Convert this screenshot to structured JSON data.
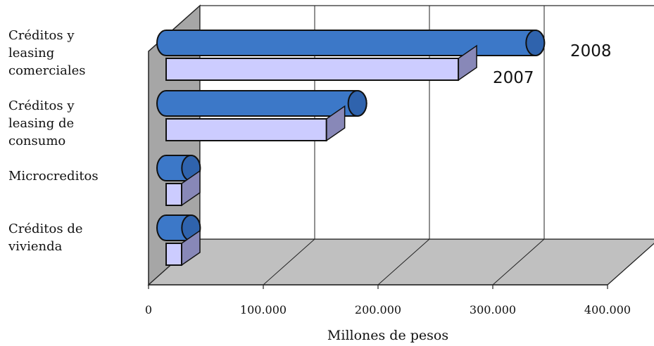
{
  "chart_data": {
    "type": "bar",
    "orientation": "horizontal",
    "categories": [
      "Créditos y\nleasing\ncomerciales",
      "Créditos y\nleasing de\nconsumo",
      "Microcreditos",
      "Créditos de\nvivienda"
    ],
    "series": [
      {
        "name": "2008",
        "values": [
          337000,
          182000,
          37000,
          37000
        ],
        "color": "#3c78c8",
        "shape": "cylinder"
      },
      {
        "name": "2007",
        "values": [
          270000,
          155000,
          17000,
          22000
        ],
        "color": "#ccccff",
        "shape": "box"
      }
    ],
    "xlabel": "Millones de pesos",
    "xticks": [
      "0",
      "100.000",
      "200.000",
      "300.000",
      "400.000"
    ],
    "xlim": [
      0,
      400000
    ],
    "grid": true,
    "legend": "direct labels"
  }
}
